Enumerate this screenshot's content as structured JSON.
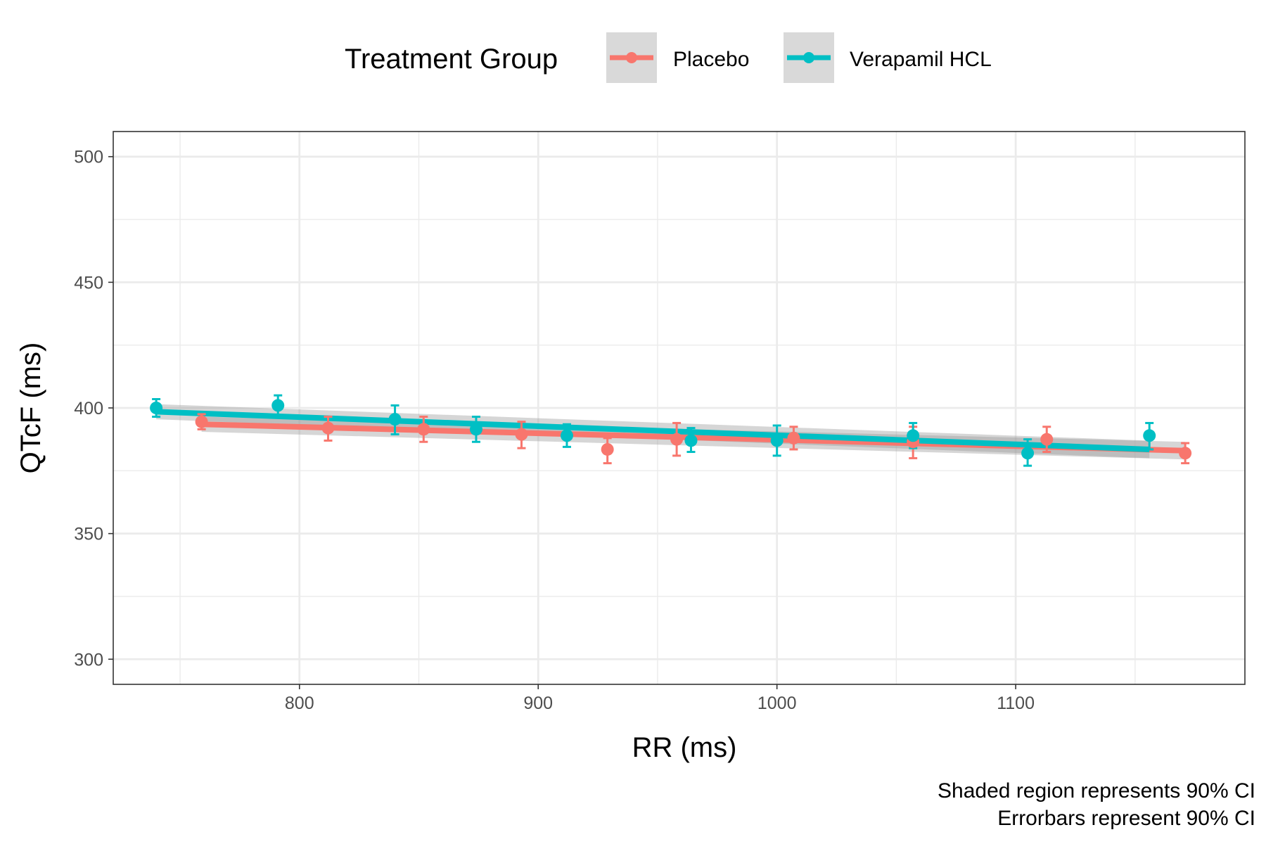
{
  "chart_data": {
    "type": "line",
    "xlabel": "RR (ms)",
    "ylabel": "QTcF (ms)",
    "xlim": [
      722,
      1196
    ],
    "ylim": [
      290,
      510
    ],
    "x_ticks": [
      800,
      900,
      1000,
      1100
    ],
    "y_ticks": [
      300,
      350,
      400,
      450,
      500
    ],
    "grid": true,
    "legend": {
      "title": "Treatment Group",
      "position": "top"
    },
    "captions": [
      "Shaded region represents 90% CI",
      "Errorbars represent 90% CI"
    ],
    "series": [
      {
        "name": "Placebo",
        "color": "#F8766D",
        "points": [
          {
            "x": 759,
            "y": 394.5,
            "lo": 391.5,
            "hi": 397.5
          },
          {
            "x": 812,
            "y": 392,
            "lo": 387,
            "hi": 396.5
          },
          {
            "x": 852,
            "y": 391.5,
            "lo": 386.5,
            "hi": 396.5
          },
          {
            "x": 893,
            "y": 389.5,
            "lo": 384,
            "hi": 394.5
          },
          {
            "x": 929,
            "y": 383.5,
            "lo": 378,
            "hi": 388
          },
          {
            "x": 958,
            "y": 387.5,
            "lo": 381,
            "hi": 394
          },
          {
            "x": 1007,
            "y": 388,
            "lo": 383.5,
            "hi": 392.5
          },
          {
            "x": 1057,
            "y": 386.5,
            "lo": 380,
            "hi": 392.5
          },
          {
            "x": 1113,
            "y": 387.5,
            "lo": 382.5,
            "hi": 392.5
          },
          {
            "x": 1171,
            "y": 382,
            "lo": 378,
            "hi": 386
          }
        ],
        "fit": {
          "x": [
            759,
            1171
          ],
          "y": [
            393.5,
            383
          ],
          "lo": [
            390.5,
            379.5
          ],
          "hi": [
            396.5,
            386.5
          ]
        }
      },
      {
        "name": "Verapamil HCL",
        "color": "#00BFC4",
        "points": [
          {
            "x": 740,
            "y": 400,
            "lo": 396.5,
            "hi": 403.5
          },
          {
            "x": 791,
            "y": 401,
            "lo": 397,
            "hi": 405
          },
          {
            "x": 840,
            "y": 395.5,
            "lo": 389.5,
            "hi": 401
          },
          {
            "x": 874,
            "y": 391.5,
            "lo": 386.5,
            "hi": 396.5
          },
          {
            "x": 912,
            "y": 389,
            "lo": 384.5,
            "hi": 393.5
          },
          {
            "x": 964,
            "y": 387,
            "lo": 382.5,
            "hi": 392
          },
          {
            "x": 1000,
            "y": 387,
            "lo": 381,
            "hi": 393
          },
          {
            "x": 1057,
            "y": 389,
            "lo": 384,
            "hi": 394
          },
          {
            "x": 1105,
            "y": 382,
            "lo": 377,
            "hi": 387.5
          },
          {
            "x": 1156,
            "y": 389,
            "lo": 383.5,
            "hi": 394
          }
        ],
        "fit": {
          "x": [
            740,
            1156
          ],
          "y": [
            398.5,
            383.5
          ],
          "lo": [
            395.5,
            380
          ],
          "hi": [
            401.5,
            387
          ]
        }
      }
    ]
  }
}
